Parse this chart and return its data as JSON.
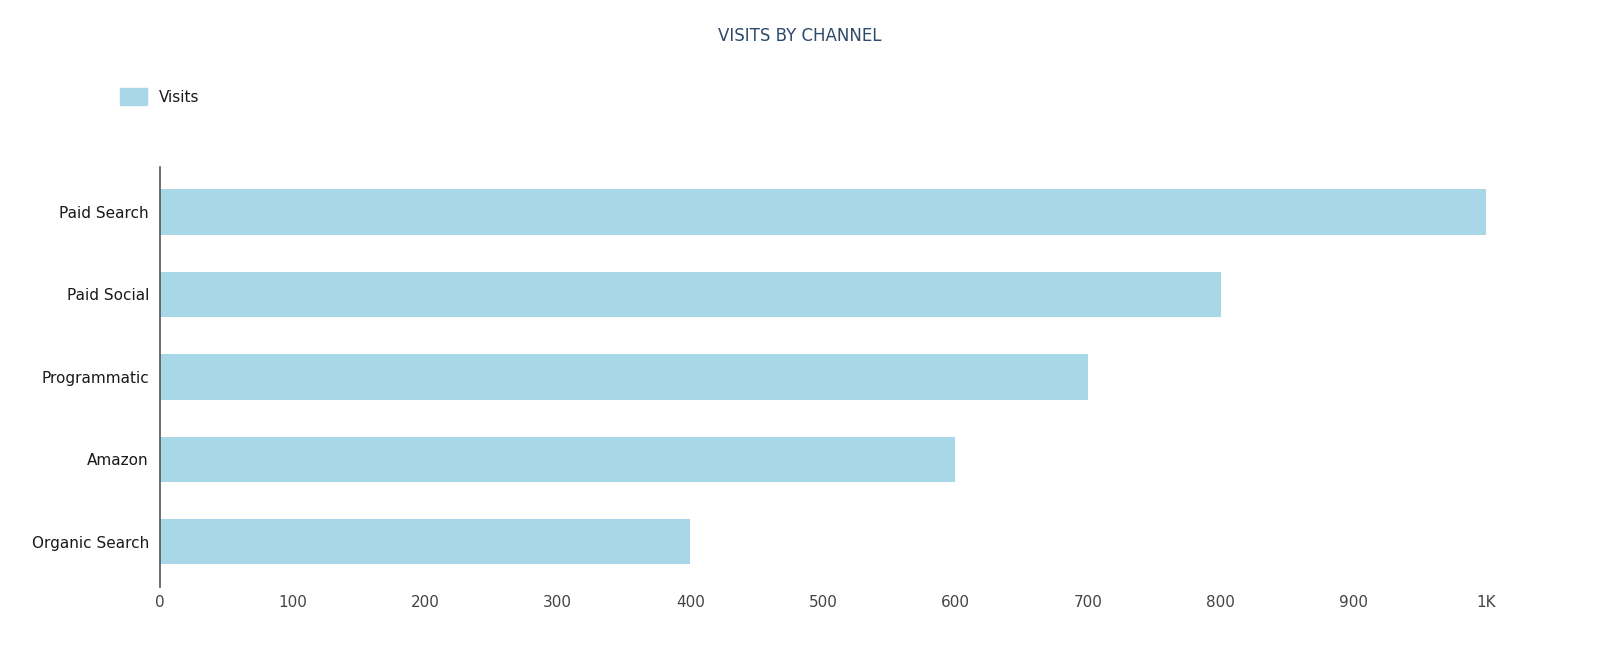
{
  "title": "VISITS BY CHANNEL",
  "categories": [
    "Paid Search",
    "Paid Social",
    "Programmatic",
    "Amazon",
    "Organic Search"
  ],
  "values": [
    1000,
    800,
    700,
    600,
    400
  ],
  "bar_color": "#a8d8e8",
  "title_color": "#2d4a6b",
  "label_color": "#1a1a1a",
  "tick_color": "#444444",
  "background_color": "#ffffff",
  "legend_label": "Visits",
  "xlim": [
    0,
    1050
  ],
  "xticks": [
    0,
    100,
    200,
    300,
    400,
    500,
    600,
    700,
    800,
    900,
    1000
  ],
  "xtick_labels": [
    "0",
    "100",
    "200",
    "300",
    "400",
    "500",
    "600",
    "700",
    "800",
    "900",
    "1K"
  ],
  "title_fontsize": 12,
  "label_fontsize": 11,
  "tick_fontsize": 11,
  "bar_height": 0.55,
  "figsize": [
    16.0,
    6.67
  ],
  "dpi": 100
}
